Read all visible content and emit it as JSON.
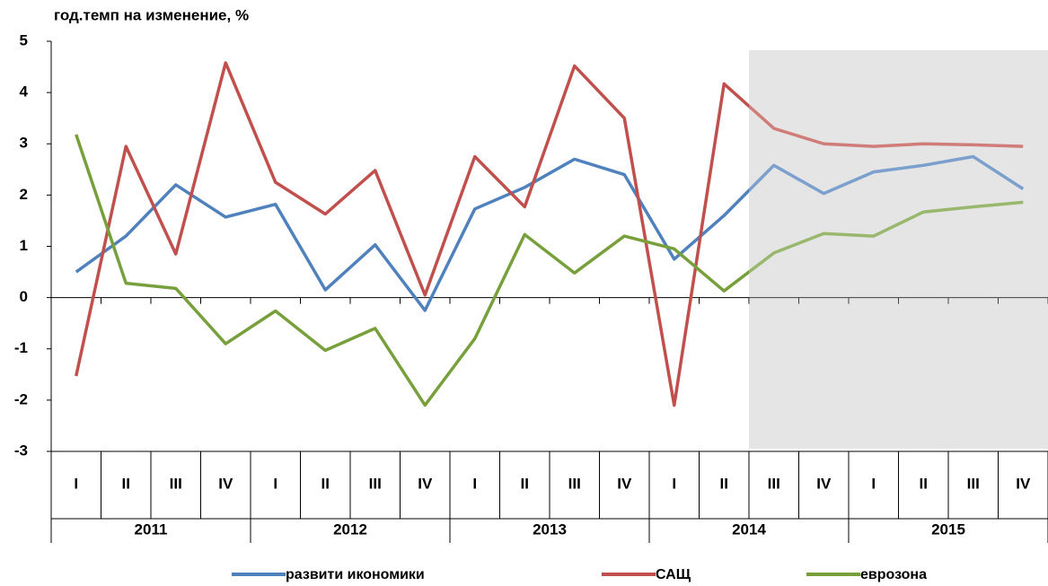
{
  "chart_data": {
    "type": "line",
    "title": "год.темп на изменение, %",
    "categories": [
      "I",
      "II",
      "III",
      "IV",
      "I",
      "II",
      "III",
      "IV",
      "I",
      "II",
      "III",
      "IV",
      "I",
      "II",
      "III",
      "IV",
      "I",
      "II",
      "III",
      "IV"
    ],
    "year_groups": [
      "2011",
      "2012",
      "2013",
      "2014",
      "2015"
    ],
    "shaded_from": 14,
    "ylim": [
      -3,
      5
    ],
    "yticks": [
      -3,
      -2,
      -1,
      0,
      1,
      2,
      3,
      4,
      5
    ],
    "series": [
      {
        "name": "развити икономики",
        "color": "#4f81bd",
        "values": [
          0.5,
          1.2,
          2.2,
          1.57,
          1.82,
          0.15,
          1.03,
          -0.25,
          1.73,
          2.15,
          2.7,
          2.4,
          0.75,
          1.6,
          2.58,
          2.03,
          2.45,
          2.58,
          2.75,
          2.12
        ]
      },
      {
        "name": "САЩ",
        "color": "#c0504d",
        "values": [
          -1.53,
          2.95,
          0.85,
          4.58,
          2.25,
          1.63,
          2.48,
          0.05,
          2.75,
          1.77,
          4.52,
          3.5,
          -2.1,
          4.17,
          3.3,
          3.0,
          2.95,
          3.0,
          2.98,
          2.95
        ]
      },
      {
        "name": "еврозона",
        "color": "#77a03c",
        "values": [
          3.18,
          0.28,
          0.18,
          -0.9,
          -0.26,
          -1.03,
          -0.6,
          -2.1,
          -0.8,
          1.23,
          0.48,
          1.2,
          0.95,
          0.13,
          0.87,
          1.25,
          1.2,
          1.67,
          1.77,
          1.86
        ]
      }
    ]
  }
}
